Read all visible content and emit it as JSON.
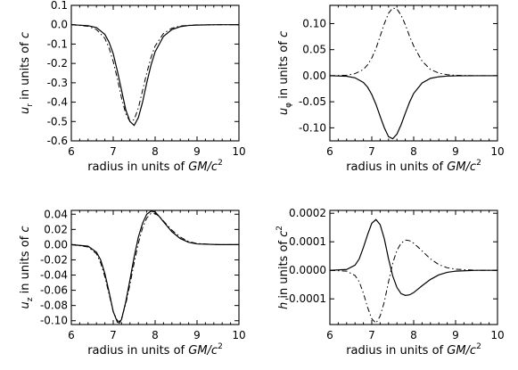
{
  "chart_data": [
    {
      "type": "line",
      "id": "ur",
      "ylabel": {
        "var": "u",
        "sub": "r",
        "text": "in units of",
        "unit": "c"
      },
      "xlabel": {
        "text": "radius in units of",
        "unit": "GM/c",
        "sup": "2"
      },
      "xlim": [
        6,
        10
      ],
      "ylim": [
        -0.6,
        0.1
      ],
      "xticks": [
        6,
        7,
        8,
        9,
        10
      ],
      "xtick_labels": [
        "6",
        "7",
        "8",
        "9",
        "10"
      ],
      "yticks": [
        0.1,
        0.0,
        -0.1,
        -0.2,
        -0.3,
        -0.4,
        -0.5,
        -0.6
      ],
      "ytick_labels": [
        "0.1",
        "0.0",
        "-0.1",
        "-0.2",
        "-0.3",
        "-0.4",
        "-0.5",
        "-0.6"
      ],
      "series": [
        {
          "style": "solid",
          "x": [
            6.0,
            6.4,
            6.6,
            6.8,
            6.9,
            7.0,
            7.1,
            7.2,
            7.3,
            7.4,
            7.5,
            7.6,
            7.7,
            7.8,
            7.9,
            8.0,
            8.2,
            8.4,
            8.6,
            8.8,
            9.0,
            9.5,
            10.0
          ],
          "y": [
            0.0,
            -0.005,
            -0.015,
            -0.05,
            -0.09,
            -0.15,
            -0.24,
            -0.34,
            -0.44,
            -0.5,
            -0.52,
            -0.48,
            -0.4,
            -0.3,
            -0.21,
            -0.14,
            -0.06,
            -0.025,
            -0.01,
            -0.004,
            -0.002,
            0.0,
            0.0
          ]
        },
        {
          "style": "dashdot",
          "x": [
            6.0,
            6.4,
            6.6,
            6.8,
            6.9,
            7.0,
            7.1,
            7.2,
            7.3,
            7.4,
            7.5,
            7.6,
            7.7,
            7.8,
            7.9,
            8.0,
            8.2,
            8.4,
            8.6,
            8.8,
            9.0,
            9.5,
            10.0
          ],
          "y": [
            0.0,
            -0.008,
            -0.025,
            -0.07,
            -0.12,
            -0.19,
            -0.28,
            -0.38,
            -0.46,
            -0.5,
            -0.49,
            -0.43,
            -0.34,
            -0.25,
            -0.17,
            -0.11,
            -0.045,
            -0.018,
            -0.007,
            -0.003,
            -0.001,
            0.0,
            0.0
          ]
        }
      ]
    },
    {
      "type": "line",
      "id": "uphi",
      "ylabel": {
        "var": "u",
        "sub": "φ",
        "text": "in units of",
        "unit": "c"
      },
      "xlabel": {
        "text": "radius in units of",
        "unit": "GM/c",
        "sup": "2"
      },
      "xlim": [
        6,
        10
      ],
      "ylim": [
        -0.125,
        0.135
      ],
      "xticks": [
        6,
        7,
        8,
        9,
        10
      ],
      "xtick_labels": [
        "6",
        "7",
        "8",
        "9",
        "10"
      ],
      "yticks": [
        0.1,
        0.05,
        0.0,
        -0.05,
        -0.1
      ],
      "ytick_labels": [
        "0.10",
        "0.05",
        "0.00",
        "-0.05",
        "-0.10"
      ],
      "series": [
        {
          "style": "solid",
          "x": [
            6.0,
            6.4,
            6.6,
            6.8,
            6.9,
            7.0,
            7.1,
            7.2,
            7.3,
            7.4,
            7.5,
            7.6,
            7.7,
            7.8,
            7.9,
            8.0,
            8.2,
            8.4,
            8.6,
            8.8,
            9.0,
            9.5,
            10.0
          ],
          "y": [
            0.0,
            -0.001,
            -0.004,
            -0.013,
            -0.022,
            -0.036,
            -0.055,
            -0.078,
            -0.1,
            -0.117,
            -0.121,
            -0.112,
            -0.094,
            -0.072,
            -0.051,
            -0.034,
            -0.014,
            -0.005,
            -0.002,
            -0.0007,
            -0.0002,
            0.0,
            0.0
          ]
        },
        {
          "style": "dashdot",
          "x": [
            6.0,
            6.4,
            6.6,
            6.8,
            6.9,
            7.0,
            7.1,
            7.2,
            7.3,
            7.4,
            7.5,
            7.6,
            7.7,
            7.8,
            7.9,
            8.0,
            8.2,
            8.4,
            8.6,
            8.8,
            9.0,
            9.5,
            10.0
          ],
          "y": [
            0.0,
            0.001,
            0.004,
            0.012,
            0.021,
            0.034,
            0.052,
            0.076,
            0.1,
            0.12,
            0.13,
            0.128,
            0.116,
            0.098,
            0.076,
            0.057,
            0.028,
            0.012,
            0.005,
            0.002,
            0.0007,
            0.0,
            0.0
          ]
        }
      ]
    },
    {
      "type": "line",
      "id": "uz",
      "ylabel": {
        "var": "u",
        "sub": "z",
        "text": "in units of",
        "unit": "c"
      },
      "xlabel": {
        "text": "radius in units of",
        "unit": "GM/c",
        "sup": "2"
      },
      "xlim": [
        6,
        10
      ],
      "ylim": [
        -0.105,
        0.045
      ],
      "xticks": [
        6,
        7,
        8,
        9,
        10
      ],
      "xtick_labels": [
        "6",
        "7",
        "8",
        "9",
        "10"
      ],
      "yticks": [
        0.04,
        0.02,
        0.0,
        -0.02,
        -0.04,
        -0.06,
        -0.08,
        -0.1
      ],
      "ytick_labels": [
        "0.04",
        "0.02",
        "0.00",
        "-0.02",
        "-0.04",
        "-0.06",
        "-0.08",
        "-0.10"
      ],
      "series": [
        {
          "style": "solid",
          "x": [
            6.0,
            6.4,
            6.6,
            6.7,
            6.8,
            6.9,
            7.0,
            7.1,
            7.15,
            7.2,
            7.3,
            7.4,
            7.5,
            7.6,
            7.7,
            7.8,
            7.9,
            8.0,
            8.1,
            8.2,
            8.4,
            8.6,
            8.8,
            9.0,
            9.5,
            10.0
          ],
          "y": [
            0.0,
            -0.002,
            -0.01,
            -0.02,
            -0.038,
            -0.062,
            -0.088,
            -0.102,
            -0.103,
            -0.098,
            -0.075,
            -0.046,
            -0.016,
            0.01,
            0.028,
            0.04,
            0.044,
            0.043,
            0.037,
            0.03,
            0.017,
            0.008,
            0.003,
            0.001,
            0.0,
            0.0
          ]
        },
        {
          "style": "dashdot",
          "x": [
            6.0,
            6.4,
            6.6,
            6.7,
            6.8,
            6.9,
            7.0,
            7.1,
            7.15,
            7.2,
            7.3,
            7.4,
            7.5,
            7.6,
            7.7,
            7.8,
            7.9,
            8.0,
            8.1,
            8.2,
            8.4,
            8.6,
            8.8,
            9.0,
            9.5,
            10.0
          ],
          "y": [
            0.0,
            -0.003,
            -0.012,
            -0.024,
            -0.042,
            -0.065,
            -0.088,
            -0.1,
            -0.101,
            -0.096,
            -0.078,
            -0.052,
            -0.024,
            0.002,
            0.022,
            0.035,
            0.041,
            0.041,
            0.037,
            0.031,
            0.019,
            0.01,
            0.004,
            0.0015,
            0.0,
            0.0
          ]
        }
      ]
    },
    {
      "type": "line",
      "id": "h",
      "ylabel": {
        "var": "h",
        "sub": "",
        "text": "in units of",
        "unit": "c",
        "sup": "2"
      },
      "xlabel": {
        "text": "radius in units of",
        "unit": "GM/c",
        "sup": "2"
      },
      "xlim": [
        6,
        10
      ],
      "ylim": [
        -0.00019,
        0.00021
      ],
      "xticks": [
        6,
        7,
        8,
        9,
        10
      ],
      "xtick_labels": [
        "6",
        "7",
        "8",
        "9",
        "10"
      ],
      "yticks": [
        0.0002,
        0.0001,
        0.0,
        -0.0001
      ],
      "ytick_labels": [
        "0.0002",
        "0.0001",
        "0.0000",
        "-0.0001"
      ],
      "series": [
        {
          "style": "solid",
          "x": [
            6.0,
            6.4,
            6.6,
            6.7,
            6.8,
            6.9,
            7.0,
            7.1,
            7.2,
            7.3,
            7.4,
            7.5,
            7.6,
            7.7,
            7.8,
            7.9,
            8.0,
            8.1,
            8.2,
            8.4,
            8.6,
            8.8,
            9.0,
            9.5,
            10.0
          ],
          "y": [
            0.0,
            3e-06,
            1.8e-05,
            4e-05,
            8e-05,
            0.000125,
            0.000165,
            0.000178,
            0.00016,
            0.00011,
            4e-05,
            -2e-05,
            -6e-05,
            -8.2e-05,
            -8.8e-05,
            -8.6e-05,
            -7.8e-05,
            -6.6e-05,
            -5.4e-05,
            -3.2e-05,
            -1.6e-05,
            -7e-06,
            -3e-06,
            0.0,
            0.0
          ]
        },
        {
          "style": "dashdot",
          "x": [
            6.0,
            6.4,
            6.6,
            6.7,
            6.8,
            6.9,
            7.0,
            7.1,
            7.2,
            7.3,
            7.4,
            7.5,
            7.6,
            7.7,
            7.8,
            7.9,
            8.0,
            8.1,
            8.2,
            8.4,
            8.6,
            8.8,
            9.0,
            9.5,
            10.0
          ],
          "y": [
            0.0,
            -3e-06,
            -1.8e-05,
            -4e-05,
            -8e-05,
            -0.00013,
            -0.00017,
            -0.000185,
            -0.00016,
            -0.00011,
            -4e-05,
            2.5e-05,
            7e-05,
            9.5e-05,
            0.000106,
            0.000104,
            9.5e-05,
            8.2e-05,
            6.8e-05,
            4e-05,
            2e-05,
            9e-06,
            4e-06,
            0.0,
            0.0
          ]
        }
      ]
    }
  ]
}
